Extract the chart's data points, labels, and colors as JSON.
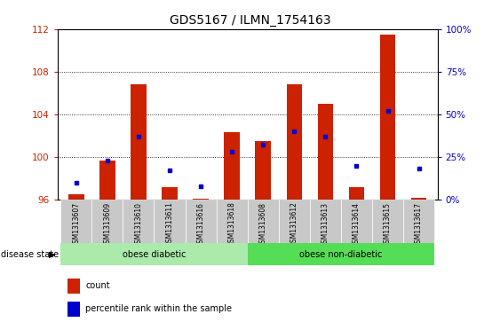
{
  "title": "GDS5167 / ILMN_1754163",
  "samples": [
    "GSM1313607",
    "GSM1313609",
    "GSM1313610",
    "GSM1313611",
    "GSM1313616",
    "GSM1313618",
    "GSM1313608",
    "GSM1313612",
    "GSM1313613",
    "GSM1313614",
    "GSM1313615",
    "GSM1313617"
  ],
  "count_values": [
    96.5,
    99.7,
    106.8,
    97.2,
    96.1,
    102.3,
    101.5,
    106.8,
    105.0,
    97.2,
    111.5,
    96.2
  ],
  "percentile_values": [
    10,
    23,
    37,
    17,
    8,
    28,
    32,
    40,
    37,
    20,
    52,
    18
  ],
  "count_base": 96,
  "ylim_left": [
    96,
    112
  ],
  "ylim_right": [
    0,
    100
  ],
  "yticks_left": [
    96,
    100,
    104,
    108,
    112
  ],
  "yticks_right": [
    0,
    25,
    50,
    75,
    100
  ],
  "bar_color": "#cc2200",
  "dot_color": "#0000cc",
  "grid_color": "#000000",
  "bg_plot": "#ffffff",
  "bg_xtick": "#c8c8c8",
  "disease_groups": [
    {
      "label": "obese diabetic",
      "start": 0,
      "end": 5,
      "color": "#aaeaaa"
    },
    {
      "label": "obese non-diabetic",
      "start": 6,
      "end": 11,
      "color": "#55dd55"
    }
  ],
  "legend_items": [
    {
      "label": "count",
      "color": "#cc2200"
    },
    {
      "label": "percentile rank within the sample",
      "color": "#0000cc"
    }
  ],
  "disease_state_label": "disease state",
  "title_fontsize": 10
}
